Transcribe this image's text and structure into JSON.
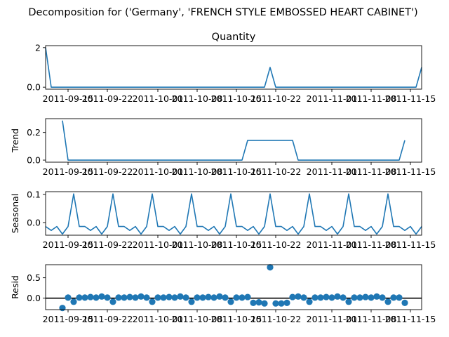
{
  "title": "Decomposition for ('Germany', 'FRENCH STYLE EMBOSSED HEART CABINET')",
  "x_tick_labels": [
    "2011-09-15",
    "2011-09-22",
    "2011-10-01",
    "2011-10-08",
    "2011-10-15",
    "2011-10-22",
    "2011-11-01",
    "2011-11-08",
    "2011-11-15"
  ],
  "colors": {
    "series": "#1f77b4",
    "zero_line": "#000000"
  },
  "chart_data": [
    {
      "type": "line",
      "title": "Quantity",
      "ylabel": "",
      "ylim": [
        -0.1,
        2.1
      ],
      "yticks": [
        0,
        2
      ],
      "x_days": [
        0,
        1,
        2,
        3,
        4,
        5,
        6,
        7,
        8,
        9,
        10,
        11,
        12,
        13,
        14,
        15,
        16,
        17,
        18,
        19,
        20,
        21,
        22,
        23,
        24,
        25,
        26,
        27,
        28,
        29,
        30,
        31,
        32,
        33,
        34,
        35,
        36,
        37,
        38,
        39,
        40,
        41,
        42,
        43,
        44,
        45,
        46,
        47,
        48,
        49,
        50,
        51,
        52,
        53,
        54,
        55,
        56,
        57,
        58,
        59,
        60,
        61,
        62,
        63,
        64,
        65,
        66,
        67
      ],
      "values": [
        2,
        0,
        0,
        0,
        0,
        0,
        0,
        0,
        0,
        0,
        0,
        0,
        0,
        0,
        0,
        0,
        0,
        0,
        0,
        0,
        0,
        0,
        0,
        0,
        0,
        0,
        0,
        0,
        0,
        0,
        0,
        0,
        0,
        0,
        0,
        0,
        0,
        0,
        0,
        0,
        1,
        0,
        0,
        0,
        0,
        0,
        0,
        0,
        0,
        0,
        0,
        0,
        0,
        0,
        0,
        0,
        0,
        0,
        0,
        0,
        0,
        0,
        0,
        0,
        0,
        0,
        0,
        1
      ]
    },
    {
      "type": "line",
      "title": "",
      "ylabel": "Trend",
      "ylim": [
        -0.015,
        0.3
      ],
      "yticks": [
        0.0,
        0.2
      ],
      "x_days": [
        3,
        4,
        5,
        6,
        7,
        8,
        9,
        10,
        11,
        12,
        13,
        14,
        15,
        16,
        17,
        18,
        19,
        20,
        21,
        22,
        23,
        24,
        25,
        26,
        27,
        28,
        29,
        30,
        31,
        32,
        33,
        34,
        35,
        36,
        37,
        38,
        39,
        40,
        41,
        42,
        43,
        44,
        45,
        46,
        47,
        48,
        49,
        50,
        51,
        52,
        53,
        54,
        55,
        56,
        57,
        58,
        59,
        60,
        61,
        62,
        63,
        64
      ],
      "values": [
        0.286,
        0,
        0,
        0,
        0,
        0,
        0,
        0,
        0,
        0,
        0,
        0,
        0,
        0,
        0,
        0,
        0,
        0,
        0,
        0,
        0,
        0,
        0,
        0,
        0,
        0,
        0,
        0,
        0,
        0,
        0,
        0,
        0,
        0.143,
        0.143,
        0.143,
        0.143,
        0.143,
        0.143,
        0.143,
        0.143,
        0.143,
        0,
        0,
        0,
        0,
        0,
        0,
        0,
        0,
        0,
        0,
        0,
        0,
        0,
        0,
        0,
        0,
        0,
        0,
        0,
        0.143
      ]
    },
    {
      "type": "line",
      "title": "",
      "ylabel": "Seasonal",
      "ylim": [
        -0.045,
        0.11
      ],
      "yticks": [
        0.0,
        0.1
      ],
      "x_days": [
        0,
        1,
        2,
        3,
        4,
        5,
        6,
        7,
        8,
        9,
        10,
        11,
        12,
        13,
        14,
        15,
        16,
        17,
        18,
        19,
        20,
        21,
        22,
        23,
        24,
        25,
        26,
        27,
        28,
        29,
        30,
        31,
        32,
        33,
        34,
        35,
        36,
        37,
        38,
        39,
        40,
        41,
        42,
        43,
        44,
        45,
        46,
        47,
        48,
        49,
        50,
        51,
        52,
        53,
        54,
        55,
        56,
        57,
        58,
        59,
        60,
        61,
        62,
        63,
        64,
        65,
        66,
        67
      ],
      "values": [
        -0.014,
        -0.028,
        -0.014,
        -0.041,
        -0.014,
        0.102,
        -0.014,
        -0.014,
        -0.028,
        -0.014,
        -0.041,
        -0.014,
        0.102,
        -0.014,
        -0.014,
        -0.028,
        -0.014,
        -0.041,
        -0.014,
        0.102,
        -0.014,
        -0.014,
        -0.028,
        -0.014,
        -0.041,
        -0.014,
        0.102,
        -0.014,
        -0.014,
        -0.028,
        -0.014,
        -0.041,
        -0.014,
        0.102,
        -0.014,
        -0.014,
        -0.028,
        -0.014,
        -0.041,
        -0.014,
        0.102,
        -0.014,
        -0.014,
        -0.028,
        -0.014,
        -0.041,
        -0.014,
        0.102,
        -0.014,
        -0.014,
        -0.028,
        -0.014,
        -0.041,
        -0.014,
        0.102,
        -0.014,
        -0.014,
        -0.028,
        -0.014,
        -0.041,
        -0.014,
        0.102,
        -0.014,
        -0.014,
        -0.028,
        -0.014,
        -0.041,
        -0.014
      ]
    },
    {
      "type": "scatter",
      "title": "",
      "ylabel": "Resid",
      "ylim": [
        -0.28,
        0.82
      ],
      "yticks": [
        0.0,
        0.5
      ],
      "zero_line": true,
      "x_days": [
        3,
        4,
        5,
        6,
        7,
        8,
        9,
        10,
        11,
        12,
        13,
        14,
        15,
        16,
        17,
        18,
        19,
        20,
        21,
        22,
        23,
        24,
        25,
        26,
        27,
        28,
        29,
        30,
        31,
        32,
        33,
        34,
        35,
        36,
        37,
        38,
        39,
        40,
        41,
        42,
        43,
        44,
        45,
        46,
        47,
        48,
        49,
        50,
        51,
        52,
        53,
        54,
        55,
        56,
        57,
        58,
        59,
        60,
        61,
        62,
        63,
        64
      ],
      "values": [
        -0.24,
        0.014,
        -0.088,
        0.014,
        0.014,
        0.028,
        0.014,
        0.041,
        0.014,
        -0.088,
        0.014,
        0.014,
        0.028,
        0.014,
        0.041,
        0.014,
        -0.088,
        0.014,
        0.014,
        0.028,
        0.014,
        0.041,
        0.014,
        -0.088,
        0.014,
        0.014,
        0.028,
        0.014,
        0.041,
        0.014,
        -0.088,
        0.014,
        0.014,
        0.028,
        -0.115,
        -0.102,
        -0.129,
        0.755,
        -0.129,
        -0.129,
        -0.115,
        0.028,
        0.041,
        0.014,
        -0.088,
        0.014,
        0.014,
        0.028,
        0.014,
        0.041,
        0.014,
        -0.088,
        0.014,
        0.014,
        0.028,
        0.014,
        0.041,
        0.014,
        -0.088,
        0.014,
        0.014,
        -0.115
      ]
    }
  ]
}
